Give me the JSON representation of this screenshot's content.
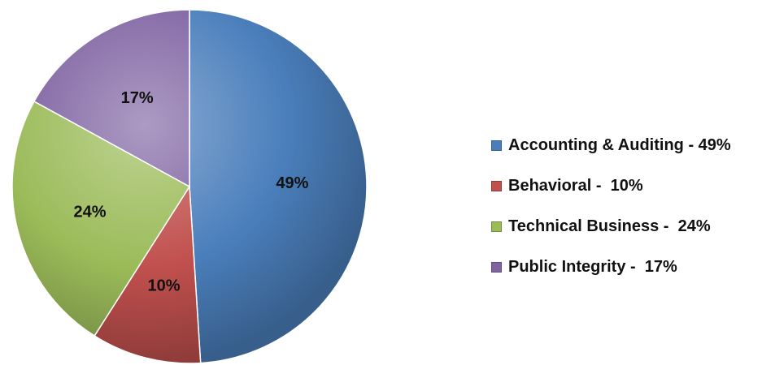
{
  "chart_data": {
    "type": "pie",
    "title": "",
    "categories": [
      "Accounting & Auditing",
      "Behavioral",
      "Technical Business",
      "Public Integrity"
    ],
    "values": [
      49,
      10,
      24,
      17
    ],
    "slice_labels": [
      "49%",
      "10%",
      "24%",
      "17%"
    ],
    "colors": [
      "#4a7ebb",
      "#c0504d",
      "#9bbb59",
      "#8064a2"
    ],
    "legend_placement": "right"
  },
  "legend": {
    "items": [
      {
        "label": "Accounting & Auditing - 49%",
        "color": "#4a7ebb"
      },
      {
        "label": "Behavioral -  10%",
        "color": "#c0504d"
      },
      {
        "label": "Technical Business -  24%",
        "color": "#9bbb59"
      },
      {
        "label": "Public Integrity -  17%",
        "color": "#8064a2"
      }
    ]
  }
}
